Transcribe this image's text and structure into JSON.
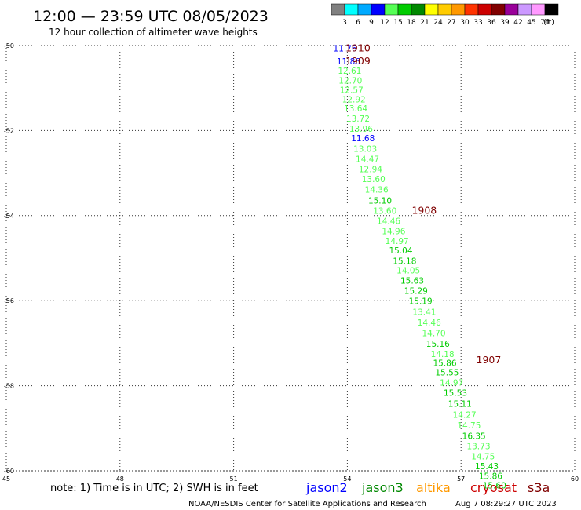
{
  "header": {
    "title": "12:00 — 23:59 UTC 08/05/2023",
    "subtitle": "12 hour collection of altimeter wave heights"
  },
  "colorbar": {
    "labels": [
      "3",
      "6",
      "9",
      "12",
      "15",
      "18",
      "21",
      "24",
      "27",
      "30",
      "33",
      "36",
      "39",
      "42",
      "45",
      "70"
    ],
    "unit": "(ft)",
    "colors": [
      "#808080",
      "#00ffff",
      "#00aaff",
      "#0000ff",
      "#55ff55",
      "#00cc00",
      "#008800",
      "#ffff00",
      "#ffcc00",
      "#ff9900",
      "#ff3300",
      "#cc0000",
      "#800000",
      "#990099",
      "#cc99ff",
      "#ff99ff",
      "#000000"
    ]
  },
  "footer": {
    "note": "note: 1) Time is in UTC; 2) SWH is in feet",
    "credit": "NOAA/NESDIS Center for Satellite Applications and Research",
    "timestamp": "Aug  7 08:29:27 UTC 2023",
    "missions": [
      {
        "label": "jason2",
        "color": "#0000ff"
      },
      {
        "label": "jason3",
        "color": "#008800"
      },
      {
        "label": "altika",
        "color": "#ff9900"
      },
      {
        "label": "cryosat",
        "color": "#cc0000"
      },
      {
        "label": "s3a",
        "color": "#800000"
      }
    ]
  },
  "chart_data": {
    "type": "scatter",
    "xlim": [
      45,
      60
    ],
    "ylim": [
      -60,
      -50
    ],
    "xticks": [
      "45",
      "48",
      "51",
      "54",
      "57",
      "60"
    ],
    "yticks": [
      "-50",
      "-52",
      "-54",
      "-56",
      "-58",
      "-60"
    ],
    "grid": true,
    "points": [
      {
        "x": 53.63,
        "y": -50.06,
        "v": "11.76",
        "c": "#0000ff"
      },
      {
        "x": 53.72,
        "y": -50.37,
        "v": "11.86",
        "c": "#0000ff"
      },
      {
        "x": 53.75,
        "y": -50.59,
        "v": "12.61",
        "c": "#55ff55"
      },
      {
        "x": 53.77,
        "y": -50.82,
        "v": "12.70",
        "c": "#55ff55"
      },
      {
        "x": 53.8,
        "y": -51.04,
        "v": "12.57",
        "c": "#55ff55"
      },
      {
        "x": 53.86,
        "y": -51.26,
        "v": "12.92",
        "c": "#55ff55"
      },
      {
        "x": 53.91,
        "y": -51.48,
        "v": "13.64",
        "c": "#55ff55"
      },
      {
        "x": 53.97,
        "y": -51.72,
        "v": "13.72",
        "c": "#55ff55"
      },
      {
        "x": 54.05,
        "y": -51.96,
        "v": "13.96",
        "c": "#55ff55"
      },
      {
        "x": 54.1,
        "y": -52.18,
        "v": "11.68",
        "c": "#0000ff"
      },
      {
        "x": 54.16,
        "y": -52.43,
        "v": "13.03",
        "c": "#55ff55"
      },
      {
        "x": 54.22,
        "y": -52.67,
        "v": "14.47",
        "c": "#55ff55"
      },
      {
        "x": 54.3,
        "y": -52.91,
        "v": "12.94",
        "c": "#55ff55"
      },
      {
        "x": 54.38,
        "y": -53.14,
        "v": "13.60",
        "c": "#55ff55"
      },
      {
        "x": 54.46,
        "y": -53.39,
        "v": "14.36",
        "c": "#55ff55"
      },
      {
        "x": 54.55,
        "y": -53.64,
        "v": "15.10",
        "c": "#00cc00"
      },
      {
        "x": 54.68,
        "y": -53.88,
        "v": "13.60",
        "c": "#55ff55"
      },
      {
        "x": 54.78,
        "y": -54.12,
        "v": "14.46",
        "c": "#55ff55"
      },
      {
        "x": 54.91,
        "y": -54.36,
        "v": "14.96",
        "c": "#55ff55"
      },
      {
        "x": 55.0,
        "y": -54.59,
        "v": "14.97",
        "c": "#55ff55"
      },
      {
        "x": 55.1,
        "y": -54.82,
        "v": "15.04",
        "c": "#00cc00"
      },
      {
        "x": 55.2,
        "y": -55.06,
        "v": "15.18",
        "c": "#00cc00"
      },
      {
        "x": 55.3,
        "y": -55.29,
        "v": "14.05",
        "c": "#55ff55"
      },
      {
        "x": 55.4,
        "y": -55.53,
        "v": "15.63",
        "c": "#00cc00"
      },
      {
        "x": 55.5,
        "y": -55.77,
        "v": "15.29",
        "c": "#00cc00"
      },
      {
        "x": 55.62,
        "y": -56.01,
        "v": "15.19",
        "c": "#00cc00"
      },
      {
        "x": 55.72,
        "y": -56.26,
        "v": "13.41",
        "c": "#55ff55"
      },
      {
        "x": 55.85,
        "y": -56.51,
        "v": "14.46",
        "c": "#55ff55"
      },
      {
        "x": 55.97,
        "y": -56.76,
        "v": "14.70",
        "c": "#55ff55"
      },
      {
        "x": 56.08,
        "y": -57.01,
        "v": "15.16",
        "c": "#00cc00"
      },
      {
        "x": 56.2,
        "y": -57.25,
        "v": "14.18",
        "c": "#55ff55"
      },
      {
        "x": 56.26,
        "y": -57.46,
        "v": "15.86",
        "c": "#00cc00"
      },
      {
        "x": 56.32,
        "y": -57.68,
        "v": "15.55",
        "c": "#00cc00"
      },
      {
        "x": 56.44,
        "y": -57.92,
        "v": "14.97",
        "c": "#55ff55"
      },
      {
        "x": 56.54,
        "y": -58.16,
        "v": "15.53",
        "c": "#00cc00"
      },
      {
        "x": 56.66,
        "y": -58.42,
        "v": "15.11",
        "c": "#00cc00"
      },
      {
        "x": 56.78,
        "y": -58.68,
        "v": "14.27",
        "c": "#55ff55"
      },
      {
        "x": 56.9,
        "y": -58.93,
        "v": "14.75",
        "c": "#55ff55"
      },
      {
        "x": 57.03,
        "y": -59.18,
        "v": "16.35",
        "c": "#00cc00"
      },
      {
        "x": 57.15,
        "y": -59.42,
        "v": "13.73",
        "c": "#55ff55"
      },
      {
        "x": 57.27,
        "y": -59.66,
        "v": "14.75",
        "c": "#55ff55"
      },
      {
        "x": 57.37,
        "y": -59.89,
        "v": "15.43",
        "c": "#00cc00"
      },
      {
        "x": 57.47,
        "y": -60.12,
        "v": "15.86",
        "c": "#00cc00"
      },
      {
        "x": 57.57,
        "y": -60.34,
        "v": "15.60",
        "c": "#00cc00"
      }
    ],
    "hour_labels": [
      {
        "x": 53.95,
        "y": -50.06,
        "v": "1910",
        "c": "#800000"
      },
      {
        "x": 53.95,
        "y": -50.37,
        "v": "1909",
        "c": "#800000"
      },
      {
        "x": 55.7,
        "y": -53.88,
        "v": "1908",
        "c": "#800000"
      },
      {
        "x": 57.4,
        "y": -57.4,
        "v": "1907",
        "c": "#800000"
      }
    ]
  }
}
